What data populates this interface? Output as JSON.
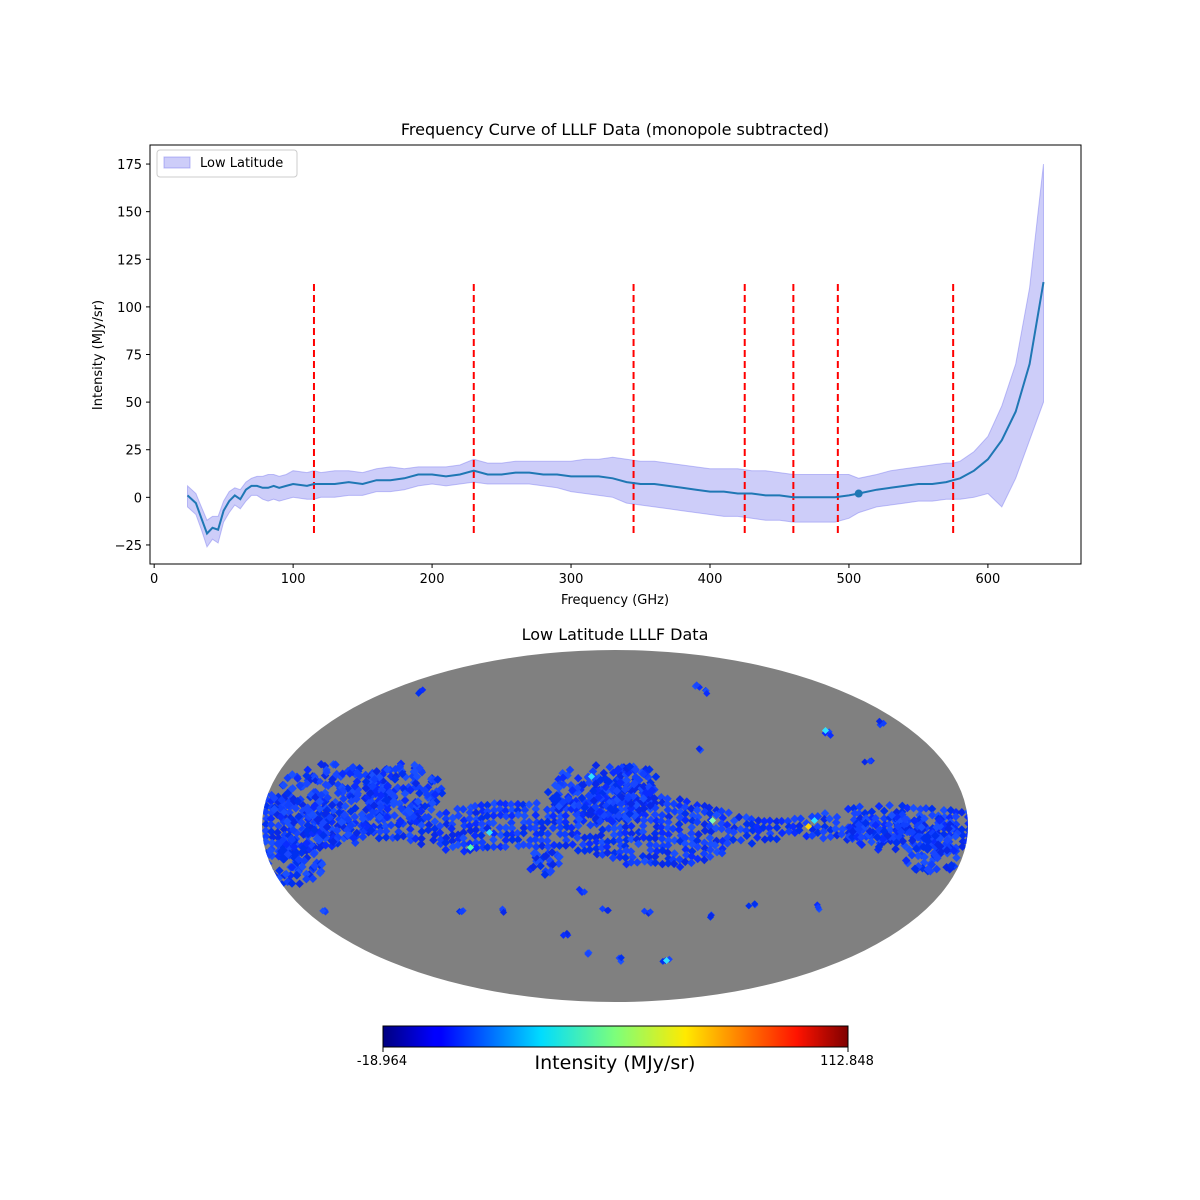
{
  "chart_data": [
    {
      "type": "line",
      "title": "Frequency Curve of LLLF Data (monopole subtracted)",
      "xlabel": "Frequency (GHz)",
      "ylabel": "Intensity (MJy/sr)",
      "xlim": [
        -3,
        667
      ],
      "ylim": [
        -35,
        185
      ],
      "xticks": [
        0,
        100,
        200,
        300,
        400,
        500,
        600
      ],
      "yticks": [
        -25,
        0,
        25,
        50,
        75,
        100,
        125,
        150,
        175
      ],
      "xtick_labels": [
        "0",
        "100",
        "200",
        "300",
        "400",
        "500",
        "600"
      ],
      "ytick_labels": [
        "−25",
        "0",
        "25",
        "50",
        "75",
        "100",
        "125",
        "150",
        "175"
      ],
      "legend": {
        "label": "Low Latitude",
        "placement": "top-left",
        "color": "#7b7bf0"
      },
      "series": [
        {
          "style": "line",
          "color": "#1f77b4",
          "x": [
            24,
            30,
            34,
            38,
            42,
            46,
            50,
            54,
            58,
            62,
            66,
            70,
            74,
            78,
            82,
            86,
            90,
            95,
            100,
            110,
            115,
            120,
            130,
            140,
            150,
            160,
            170,
            180,
            190,
            200,
            210,
            220,
            230,
            240,
            250,
            260,
            270,
            280,
            290,
            300,
            310,
            320,
            330,
            340,
            350,
            360,
            370,
            380,
            390,
            400,
            410,
            420,
            430,
            440,
            450,
            460,
            470,
            480,
            490,
            500,
            507,
            520,
            530,
            540,
            550,
            560,
            570,
            575,
            580,
            590,
            600,
            610,
            620,
            630,
            640
          ],
          "y": [
            1,
            -3,
            -11,
            -19,
            -16,
            -17,
            -7,
            -2,
            1,
            -1,
            4,
            6,
            6,
            5,
            5,
            6,
            5,
            6,
            7,
            6,
            7,
            7,
            7,
            8,
            7,
            9,
            9,
            10,
            12,
            12,
            11,
            12,
            14,
            12,
            12,
            13,
            13,
            12,
            12,
            11,
            11,
            11,
            10,
            8,
            7,
            7,
            6,
            5,
            4,
            3,
            3,
            2,
            2,
            1,
            1,
            0,
            0,
            0,
            0,
            1,
            2,
            4,
            5,
            6,
            7,
            7,
            8,
            9,
            10,
            14,
            20,
            30,
            45,
            70,
            113
          ]
        },
        {
          "style": "band",
          "color": "#7b7bf0",
          "x": [
            24,
            30,
            34,
            38,
            42,
            46,
            50,
            54,
            58,
            62,
            66,
            70,
            74,
            78,
            82,
            86,
            90,
            95,
            100,
            110,
            115,
            120,
            130,
            140,
            150,
            160,
            170,
            180,
            190,
            200,
            210,
            220,
            230,
            240,
            250,
            260,
            270,
            280,
            290,
            300,
            310,
            320,
            330,
            340,
            350,
            360,
            370,
            380,
            390,
            400,
            410,
            420,
            430,
            440,
            450,
            460,
            470,
            480,
            490,
            500,
            507,
            520,
            530,
            540,
            550,
            560,
            570,
            575,
            580,
            590,
            600,
            610,
            620,
            630,
            640
          ],
          "upper": [
            6,
            2,
            -5,
            -12,
            -10,
            -10,
            -2,
            3,
            5,
            4,
            8,
            10,
            11,
            11,
            12,
            12,
            11,
            12,
            14,
            13,
            14,
            13,
            14,
            14,
            13,
            15,
            16,
            15,
            16,
            16,
            16,
            17,
            20,
            18,
            18,
            19,
            19,
            19,
            19,
            19,
            20,
            20,
            21,
            20,
            19,
            19,
            18,
            17,
            16,
            15,
            15,
            15,
            14,
            14,
            13,
            12,
            12,
            12,
            12,
            12,
            10,
            12,
            14,
            15,
            16,
            17,
            18,
            18,
            19,
            24,
            32,
            48,
            70,
            110,
            175
          ],
          "lower": [
            -5,
            -9,
            -17,
            -26,
            -22,
            -24,
            -13,
            -8,
            -4,
            -6,
            -2,
            1,
            1,
            -1,
            -2,
            -1,
            -2,
            -1,
            0,
            -1,
            -1,
            0,
            0,
            1,
            1,
            3,
            3,
            4,
            6,
            7,
            6,
            7,
            8,
            7,
            7,
            7,
            7,
            6,
            5,
            3,
            2,
            1,
            0,
            -3,
            -4,
            -5,
            -6,
            -7,
            -8,
            -9,
            -10,
            -10,
            -11,
            -12,
            -12,
            -13,
            -13,
            -13,
            -13,
            -11,
            -8,
            -5,
            -4,
            -3,
            -2,
            -2,
            -1,
            -1,
            -1,
            0,
            2,
            -5,
            10,
            30,
            50
          ]
        },
        {
          "style": "point",
          "color": "#1f77b4",
          "x": [
            507
          ],
          "y": [
            2
          ]
        }
      ],
      "vlines": {
        "color": "#ff0000",
        "style": "dashed",
        "x": [
          115,
          230,
          345,
          425,
          460,
          492,
          575
        ],
        "ymin": -19,
        "ymax": 112
      }
    },
    {
      "type": "heatmap",
      "title": "Low Latitude LLLF Data",
      "projection": "mollweide",
      "masked_color": "#808080",
      "colormap": "jet",
      "colorbar": {
        "min": -18.964,
        "max": 112.848,
        "min_label": "-18.964",
        "max_label": "112.848",
        "label": "Intensity (MJy/sr)"
      }
    }
  ]
}
